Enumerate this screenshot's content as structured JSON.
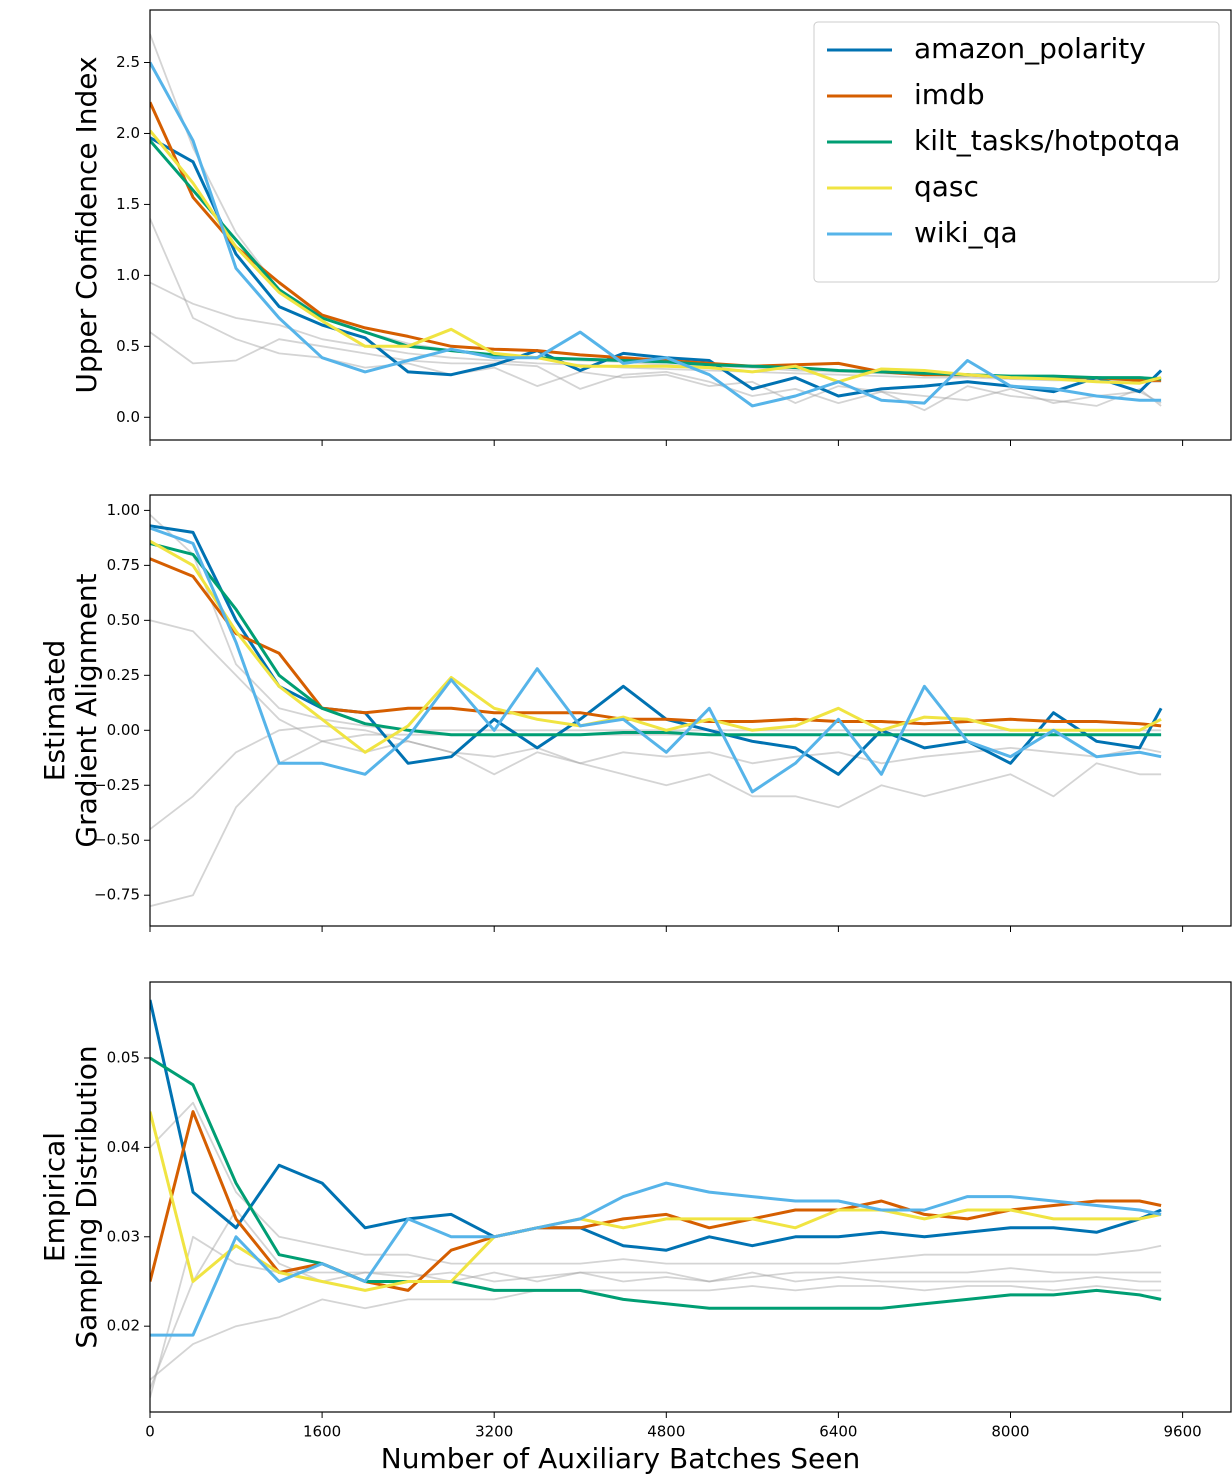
{
  "chart_data": [
    {
      "type": "line",
      "ylabel": [
        "Upper Confidence Index"
      ],
      "legend": "upper right",
      "x": [
        0,
        400,
        800,
        1200,
        1600,
        2000,
        2400,
        2800,
        3200,
        3600,
        4000,
        4400,
        4800,
        5200,
        5600,
        6000,
        6400,
        6800,
        7200,
        7600,
        8000,
        8400,
        8800,
        9200,
        9400
      ],
      "xlim": [
        0,
        10050
      ],
      "xticks": [
        0,
        1600,
        3200,
        4800,
        6400,
        8000,
        9600
      ],
      "ylim": [
        -0.16,
        2.87
      ],
      "yticks": [
        {
          "value": 0,
          "label": "0.0"
        },
        0.5,
        {
          "value": 1,
          "label": "1.0"
        },
        1.5,
        {
          "value": 2,
          "label": "2.0"
        },
        2.5
      ],
      "series": [
        {
          "name": "amazon_polarity",
          "color": "#0072b2",
          "values": [
            1.97,
            1.8,
            1.15,
            0.78,
            0.65,
            0.56,
            0.32,
            0.3,
            0.37,
            0.47,
            0.33,
            0.45,
            0.42,
            0.4,
            0.2,
            0.28,
            0.15,
            0.2,
            0.22,
            0.25,
            0.22,
            0.18,
            0.28,
            0.18,
            0.33
          ]
        },
        {
          "name": "imdb",
          "color": "#d55e00",
          "values": [
            2.22,
            1.55,
            1.2,
            0.95,
            0.72,
            0.63,
            0.57,
            0.5,
            0.48,
            0.47,
            0.44,
            0.42,
            0.4,
            0.38,
            0.36,
            0.37,
            0.38,
            0.32,
            0.3,
            0.3,
            0.28,
            0.28,
            0.28,
            0.26,
            0.26
          ]
        },
        {
          "name": "kilt_tasks/hotpotqa",
          "color": "#009e73",
          "values": [
            1.95,
            1.6,
            1.25,
            0.9,
            0.7,
            0.6,
            0.5,
            0.47,
            0.44,
            0.42,
            0.41,
            0.4,
            0.39,
            0.37,
            0.36,
            0.35,
            0.33,
            0.32,
            0.31,
            0.3,
            0.29,
            0.29,
            0.28,
            0.28,
            0.27
          ]
        },
        {
          "name": "qasc",
          "color": "#f0e442",
          "values": [
            2.02,
            1.65,
            1.2,
            0.88,
            0.68,
            0.5,
            0.5,
            0.62,
            0.45,
            0.42,
            0.36,
            0.36,
            0.36,
            0.35,
            0.32,
            0.36,
            0.25,
            0.34,
            0.33,
            0.3,
            0.28,
            0.27,
            0.25,
            0.24,
            0.28
          ]
        },
        {
          "name": "wiki_qa",
          "color": "#56b4e9",
          "values": [
            2.5,
            1.95,
            1.05,
            0.7,
            0.42,
            0.32,
            0.4,
            0.48,
            0.42,
            0.42,
            0.6,
            0.38,
            0.42,
            0.3,
            0.08,
            0.15,
            0.25,
            0.12,
            0.1,
            0.4,
            0.22,
            0.2,
            0.15,
            0.12,
            0.12
          ]
        },
        {
          "color": "#a0a0a0",
          "values": [
            0.6,
            0.38,
            0.4,
            0.55,
            0.5,
            0.45,
            0.4,
            0.38,
            0.38,
            0.36,
            0.2,
            0.3,
            0.32,
            0.25,
            0.15,
            0.2,
            0.1,
            0.18,
            0.15,
            0.12,
            0.2,
            0.1,
            0.15,
            0.18,
            0.1
          ]
        },
        {
          "color": "#a0a0a0",
          "values": [
            2.7,
            1.9,
            1.3,
            0.9,
            0.72,
            0.6,
            0.52,
            0.47,
            0.44,
            0.42,
            0.4,
            0.39,
            0.37,
            0.36,
            0.35,
            0.33,
            0.32,
            0.31,
            0.3,
            0.29,
            0.28,
            0.28,
            0.27,
            0.27,
            0.26
          ]
        },
        {
          "color": "#a0a0a0",
          "values": [
            0.95,
            0.8,
            0.7,
            0.65,
            0.55,
            0.5,
            0.45,
            0.42,
            0.4,
            0.38,
            0.37,
            0.35,
            0.34,
            0.33,
            0.32,
            0.31,
            0.3,
            0.29,
            0.28,
            0.28,
            0.27,
            0.26,
            0.26,
            0.25,
            0.25
          ]
        },
        {
          "color": "#a0a0a0",
          "values": [
            1.4,
            0.7,
            0.55,
            0.45,
            0.42,
            0.35,
            0.38,
            0.3,
            0.35,
            0.22,
            0.32,
            0.28,
            0.3,
            0.22,
            0.25,
            0.1,
            0.22,
            0.18,
            0.05,
            0.22,
            0.15,
            0.12,
            0.08,
            0.2,
            0.08
          ]
        }
      ]
    },
    {
      "type": "line",
      "ylabel": [
        "Estimated",
        "Gradient Alignment"
      ],
      "x": [
        0,
        400,
        800,
        1200,
        1600,
        2000,
        2400,
        2800,
        3200,
        3600,
        4000,
        4400,
        4800,
        5200,
        5600,
        6000,
        6400,
        6800,
        7200,
        7600,
        8000,
        8400,
        8800,
        9200,
        9400
      ],
      "xlim": [
        0,
        10050
      ],
      "xticks": [
        0,
        1600,
        3200,
        4800,
        6400,
        8000,
        9600
      ],
      "ylim": [
        -0.89,
        1.07
      ],
      "yticks": [
        {
          "value": -0.75,
          "label": "−0.75"
        },
        {
          "value": -0.5,
          "label": "−0.50"
        },
        {
          "value": -0.25,
          "label": "−0.25"
        },
        {
          "value": 0,
          "label": "0.00"
        },
        0.25,
        {
          "value": 0.5,
          "label": "0.50"
        },
        0.75,
        {
          "value": 1,
          "label": "1.00"
        }
      ],
      "series": [
        {
          "color": "#0072b2",
          "values": [
            0.93,
            0.9,
            0.5,
            0.2,
            0.1,
            0.08,
            -0.15,
            -0.12,
            0.05,
            -0.08,
            0.05,
            0.2,
            0.05,
            0.0,
            -0.05,
            -0.08,
            -0.2,
            0.0,
            -0.08,
            -0.05,
            -0.15,
            0.08,
            -0.05,
            -0.08,
            0.1
          ]
        },
        {
          "color": "#d55e00",
          "values": [
            0.78,
            0.7,
            0.44,
            0.35,
            0.1,
            0.08,
            0.1,
            0.1,
            0.08,
            0.08,
            0.08,
            0.05,
            0.05,
            0.04,
            0.04,
            0.05,
            0.04,
            0.04,
            0.03,
            0.04,
            0.05,
            0.04,
            0.04,
            0.03,
            0.02
          ]
        },
        {
          "color": "#009e73",
          "values": [
            0.85,
            0.8,
            0.55,
            0.25,
            0.1,
            0.03,
            0.0,
            -0.02,
            -0.02,
            -0.02,
            -0.02,
            -0.01,
            -0.01,
            -0.02,
            -0.02,
            -0.02,
            -0.02,
            -0.02,
            -0.02,
            -0.02,
            -0.02,
            -0.02,
            -0.02,
            -0.02,
            -0.02
          ]
        },
        {
          "color": "#f0e442",
          "values": [
            0.86,
            0.75,
            0.45,
            0.2,
            0.05,
            -0.1,
            0.02,
            0.24,
            0.1,
            0.05,
            0.02,
            0.06,
            0.0,
            0.05,
            0.0,
            0.02,
            0.1,
            0.0,
            0.06,
            0.05,
            0.0,
            0.0,
            0.0,
            0.0,
            0.05
          ]
        },
        {
          "color": "#56b4e9",
          "values": [
            0.92,
            0.85,
            0.4,
            -0.15,
            -0.15,
            -0.2,
            -0.03,
            0.23,
            0.0,
            0.28,
            0.02,
            0.05,
            -0.1,
            0.1,
            -0.28,
            -0.15,
            0.05,
            -0.2,
            0.2,
            -0.05,
            -0.12,
            0.0,
            -0.12,
            -0.1,
            -0.12
          ]
        },
        {
          "color": "#a0a0a0",
          "values": [
            -0.8,
            -0.75,
            -0.35,
            -0.15,
            -0.05,
            -0.02,
            -0.02,
            -0.02,
            -0.02,
            -0.02,
            -0.02,
            -0.02,
            -0.02,
            -0.02,
            -0.02,
            -0.02,
            -0.02,
            -0.02,
            -0.02,
            -0.02,
            -0.02,
            -0.02,
            -0.02,
            -0.02,
            -0.02
          ]
        },
        {
          "color": "#a0a0a0",
          "values": [
            -0.45,
            -0.3,
            -0.1,
            0.0,
            0.02,
            0.0,
            -0.05,
            -0.1,
            -0.2,
            -0.1,
            -0.15,
            -0.2,
            -0.25,
            -0.2,
            -0.3,
            -0.3,
            -0.35,
            -0.25,
            -0.3,
            -0.25,
            -0.2,
            -0.3,
            -0.15,
            -0.2,
            -0.2
          ]
        },
        {
          "color": "#a0a0a0",
          "values": [
            0.98,
            0.8,
            0.3,
            0.1,
            0.05,
            0.02,
            0.0,
            0.0,
            0.0,
            0.0,
            0.0,
            0.0,
            0.0,
            0.0,
            0.0,
            0.0,
            0.0,
            0.0,
            0.0,
            0.0,
            0.0,
            0.0,
            0.0,
            0.0,
            0.0
          ]
        },
        {
          "color": "#a0a0a0",
          "values": [
            0.5,
            0.45,
            0.25,
            0.05,
            -0.05,
            -0.1,
            -0.05,
            -0.1,
            -0.12,
            -0.08,
            -0.15,
            -0.1,
            -0.12,
            -0.1,
            -0.15,
            -0.12,
            -0.1,
            -0.15,
            -0.12,
            -0.1,
            -0.08,
            -0.1,
            -0.12,
            -0.08,
            -0.1
          ]
        }
      ]
    },
    {
      "type": "line",
      "ylabel": [
        "Empirical",
        "Sampling Distribution"
      ],
      "xlabel": "Number of Auxiliary Batches Seen",
      "x": [
        0,
        400,
        800,
        1200,
        1600,
        2000,
        2400,
        2800,
        3200,
        3600,
        4000,
        4400,
        4800,
        5200,
        5600,
        6000,
        6400,
        6800,
        7200,
        7600,
        8000,
        8400,
        8800,
        9200,
        9400
      ],
      "xlim": [
        0,
        10050
      ],
      "xticks": [
        0,
        1600,
        3200,
        4800,
        6400,
        8000,
        9600
      ],
      "ylim": [
        0.0104,
        0.0585
      ],
      "yticks": [
        0.02,
        0.03,
        0.04,
        0.05
      ],
      "series": [
        {
          "color": "#0072b2",
          "values": [
            0.0565,
            0.035,
            0.031,
            0.038,
            0.036,
            0.031,
            0.032,
            0.0325,
            0.03,
            0.031,
            0.031,
            0.029,
            0.0285,
            0.03,
            0.029,
            0.03,
            0.03,
            0.0305,
            0.03,
            0.0305,
            0.031,
            0.031,
            0.0305,
            0.032,
            0.033
          ]
        },
        {
          "color": "#d55e00",
          "values": [
            0.025,
            0.044,
            0.032,
            0.026,
            0.027,
            0.025,
            0.024,
            0.0285,
            0.03,
            0.031,
            0.031,
            0.032,
            0.0325,
            0.031,
            0.032,
            0.033,
            0.033,
            0.034,
            0.0325,
            0.032,
            0.033,
            0.0335,
            0.034,
            0.034,
            0.0335
          ]
        },
        {
          "color": "#009e73",
          "values": [
            0.05,
            0.047,
            0.036,
            0.028,
            0.027,
            0.025,
            0.025,
            0.025,
            0.024,
            0.024,
            0.024,
            0.023,
            0.0225,
            0.022,
            0.022,
            0.022,
            0.022,
            0.022,
            0.0225,
            0.023,
            0.0235,
            0.0235,
            0.024,
            0.0235,
            0.023
          ]
        },
        {
          "color": "#f0e442",
          "values": [
            0.044,
            0.025,
            0.029,
            0.026,
            0.025,
            0.024,
            0.025,
            0.025,
            0.03,
            0.031,
            0.032,
            0.031,
            0.032,
            0.032,
            0.032,
            0.031,
            0.033,
            0.033,
            0.032,
            0.033,
            0.033,
            0.032,
            0.032,
            0.032,
            0.0325
          ]
        },
        {
          "color": "#56b4e9",
          "values": [
            0.019,
            0.019,
            0.03,
            0.025,
            0.027,
            0.025,
            0.032,
            0.03,
            0.03,
            0.031,
            0.032,
            0.0345,
            0.036,
            0.035,
            0.0345,
            0.034,
            0.034,
            0.033,
            0.033,
            0.0345,
            0.0345,
            0.034,
            0.0335,
            0.033,
            0.0325
          ]
        },
        {
          "color": "#a0a0a0",
          "values": [
            0.012,
            0.03,
            0.027,
            0.026,
            0.026,
            0.026,
            0.0255,
            0.026,
            0.025,
            0.0255,
            0.026,
            0.025,
            0.0255,
            0.025,
            0.026,
            0.025,
            0.0255,
            0.025,
            0.025,
            0.025,
            0.025,
            0.025,
            0.0255,
            0.025,
            0.025
          ]
        },
        {
          "color": "#a0a0a0",
          "values": [
            0.04,
            0.045,
            0.035,
            0.03,
            0.029,
            0.028,
            0.028,
            0.027,
            0.027,
            0.027,
            0.027,
            0.0275,
            0.027,
            0.027,
            0.027,
            0.027,
            0.027,
            0.0275,
            0.028,
            0.028,
            0.028,
            0.028,
            0.028,
            0.0285,
            0.029
          ]
        },
        {
          "color": "#a0a0a0",
          "values": [
            0.014,
            0.018,
            0.02,
            0.021,
            0.023,
            0.022,
            0.023,
            0.023,
            0.023,
            0.024,
            0.024,
            0.024,
            0.024,
            0.024,
            0.0245,
            0.024,
            0.0245,
            0.0245,
            0.024,
            0.0245,
            0.0245,
            0.024,
            0.0245,
            0.024,
            0.024
          ]
        },
        {
          "color": "#a0a0a0",
          "values": [
            0.013,
            0.025,
            0.033,
            0.027,
            0.025,
            0.026,
            0.026,
            0.025,
            0.026,
            0.025,
            0.026,
            0.026,
            0.026,
            0.025,
            0.0255,
            0.026,
            0.026,
            0.026,
            0.026,
            0.026,
            0.0265,
            0.026,
            0.026,
            0.026,
            0.026
          ]
        }
      ]
    }
  ]
}
